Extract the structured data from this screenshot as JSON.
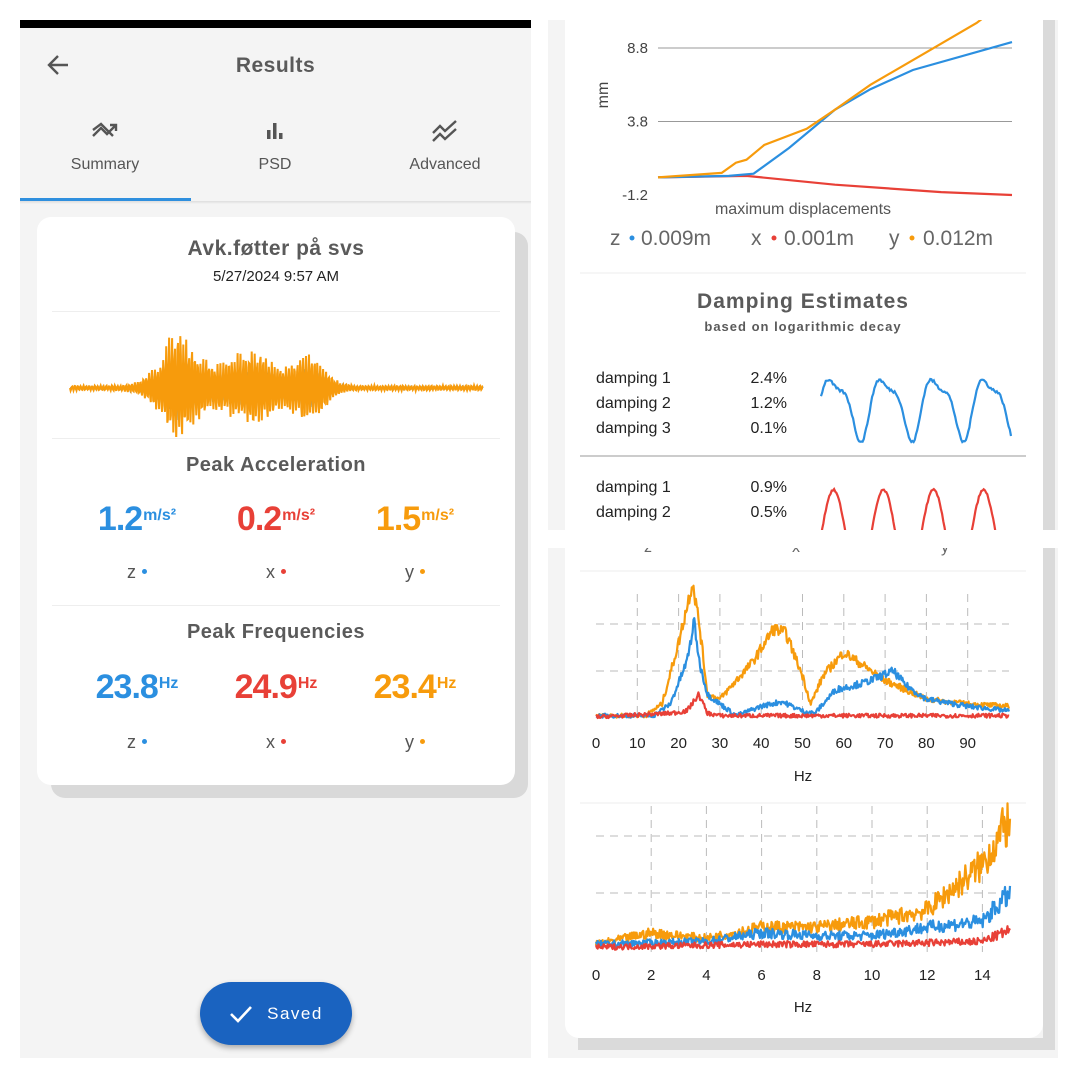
{
  "header": {
    "title": "Results",
    "back_icon": "arrow-left-icon"
  },
  "tabs": [
    {
      "label": "Summary",
      "icon": "trending-icon",
      "active": true
    },
    {
      "label": "PSD",
      "icon": "bar-chart-icon",
      "active": false
    },
    {
      "label": "Advanced",
      "icon": "multiline-chart-icon",
      "active": false
    }
  ],
  "recording": {
    "name": "Avk.føtter på svs",
    "datetime": "5/27/2024 9:57 AM"
  },
  "colors": {
    "z": "#2b8fe0",
    "x": "#e84037",
    "y": "#f79b0c",
    "accent": "#2f8fde",
    "button": "#1a63c0"
  },
  "peak_acceleration": {
    "title": "Peak Acceleration",
    "unit": "m/s²",
    "items": [
      {
        "axis": "z",
        "value": "1.2"
      },
      {
        "axis": "x",
        "value": "0.2"
      },
      {
        "axis": "y",
        "value": "1.5"
      }
    ]
  },
  "peak_frequencies": {
    "title": "Peak Frequencies",
    "unit": "Hz",
    "items": [
      {
        "axis": "z",
        "value": "23.8"
      },
      {
        "axis": "x",
        "value": "24.9"
      },
      {
        "axis": "y",
        "value": "23.4"
      }
    ]
  },
  "saved_button": {
    "label": "Saved",
    "icon": "check-icon"
  },
  "displacement": {
    "legend": [
      {
        "axis": "z",
        "value": "0.009m"
      },
      {
        "axis": "x",
        "value": "0.001m"
      },
      {
        "axis": "y",
        "value": "0.012m"
      }
    ]
  },
  "damping": {
    "title": "Damping Estimates",
    "subtitle": "based on logarithmic decay",
    "groups": [
      {
        "axis": "z",
        "rows": [
          {
            "label": "damping 1",
            "value": "2.4%"
          },
          {
            "label": "damping 2",
            "value": "1.2%"
          },
          {
            "label": "damping 3",
            "value": "0.1%"
          }
        ]
      },
      {
        "axis": "x",
        "rows": [
          {
            "label": "damping 1",
            "value": "0.9%"
          },
          {
            "label": "damping 2",
            "value": "0.5%"
          }
        ]
      }
    ]
  },
  "psd_legend": [
    "z",
    "x",
    "y"
  ],
  "chart_data": [
    {
      "type": "line",
      "xlabel": "maximum displacements",
      "ylabel": "mm",
      "yticks": [
        "8.8",
        "3.8",
        "-1.2"
      ],
      "ylim": [
        -1.2,
        8.8
      ],
      "grid": "horizontal",
      "x": "relative time 0-1",
      "series": [
        {
          "axis": "z",
          "points": [
            [
              0,
              0
            ],
            [
              0.2,
              0.1
            ],
            [
              0.27,
              0.25
            ],
            [
              0.37,
              2
            ],
            [
              0.5,
              4.6
            ],
            [
              0.6,
              6
            ],
            [
              0.72,
              7.3
            ],
            [
              1,
              9.2
            ]
          ]
        },
        {
          "axis": "x",
          "points": [
            [
              0,
              0
            ],
            [
              0.25,
              0.1
            ],
            [
              0.5,
              -0.5
            ],
            [
              0.8,
              -1.0
            ],
            [
              1,
              -1.2
            ]
          ]
        },
        {
          "axis": "y",
          "points": [
            [
              0,
              0
            ],
            [
              0.18,
              0.3
            ],
            [
              0.22,
              1
            ],
            [
              0.25,
              1.2
            ],
            [
              0.3,
              2.2
            ],
            [
              0.42,
              3.3
            ],
            [
              0.5,
              4.6
            ],
            [
              0.6,
              6.3
            ],
            [
              0.75,
              8.4
            ],
            [
              0.9,
              10.5
            ],
            [
              0.97,
              11.8
            ]
          ]
        }
      ]
    },
    {
      "type": "line",
      "xlabel": "Hz",
      "xticks": [
        "0",
        "10",
        "20",
        "30",
        "40",
        "50",
        "60",
        "70",
        "80",
        "90"
      ],
      "xlim": [
        0,
        100
      ],
      "ylim": [
        0,
        3
      ],
      "grid": "dashed",
      "series": [
        {
          "axis": "y",
          "points": [
            [
              0,
              0.05
            ],
            [
              12,
              0.05
            ],
            [
              16,
              0.3
            ],
            [
              20,
              1.6
            ],
            [
              23.4,
              2.9
            ],
            [
              25,
              2
            ],
            [
              27,
              0.5
            ],
            [
              30,
              0.4
            ],
            [
              33,
              0.7
            ],
            [
              38,
              1.2
            ],
            [
              43,
              1.9
            ],
            [
              46,
              1.8
            ],
            [
              50,
              0.9
            ],
            [
              52,
              0.3
            ],
            [
              55,
              0.9
            ],
            [
              60,
              1.4
            ],
            [
              65,
              1.1
            ],
            [
              70,
              0.8
            ],
            [
              75,
              0.6
            ],
            [
              80,
              0.4
            ],
            [
              90,
              0.3
            ],
            [
              100,
              0.25
            ]
          ]
        },
        {
          "axis": "z",
          "points": [
            [
              0,
              0.05
            ],
            [
              14,
              0.05
            ],
            [
              18,
              0.3
            ],
            [
              22,
              1.2
            ],
            [
              23.8,
              2.05
            ],
            [
              25,
              1.2
            ],
            [
              27,
              0.5
            ],
            [
              30,
              0.3
            ],
            [
              34,
              0.05
            ],
            [
              40,
              0.25
            ],
            [
              45,
              0.35
            ],
            [
              50,
              0.15
            ],
            [
              53,
              0.1
            ],
            [
              58,
              0.6
            ],
            [
              65,
              0.75
            ],
            [
              72,
              1.0
            ],
            [
              75,
              0.7
            ],
            [
              80,
              0.4
            ],
            [
              90,
              0.25
            ],
            [
              100,
              0.15
            ]
          ]
        },
        {
          "axis": "x",
          "points": [
            [
              0,
              0.02
            ],
            [
              18,
              0.1
            ],
            [
              22,
              0.15
            ],
            [
              24.9,
              0.5
            ],
            [
              27,
              0.1
            ],
            [
              30,
              0.05
            ],
            [
              100,
              0.05
            ]
          ]
        }
      ]
    },
    {
      "type": "line",
      "xlabel": "Hz",
      "xticks": [
        "0",
        "2",
        "4",
        "6",
        "8",
        "10",
        "12",
        "14"
      ],
      "xlim": [
        0,
        15
      ],
      "ylim": [
        0,
        2.3
      ],
      "grid": "dashed",
      "series": [
        {
          "axis": "y",
          "points": [
            [
              0,
              0.1
            ],
            [
              2,
              0.3
            ],
            [
              4,
              0.2
            ],
            [
              6,
              0.4
            ],
            [
              8,
              0.4
            ],
            [
              10,
              0.5
            ],
            [
              12,
              0.7
            ],
            [
              13,
              1.1
            ],
            [
              14,
              1.5
            ],
            [
              15,
              2.3
            ]
          ]
        },
        {
          "axis": "z",
          "points": [
            [
              0,
              0.1
            ],
            [
              4,
              0.15
            ],
            [
              6,
              0.3
            ],
            [
              8,
              0.25
            ],
            [
              10,
              0.25
            ],
            [
              12,
              0.4
            ],
            [
              14,
              0.5
            ],
            [
              15,
              1
            ]
          ]
        },
        {
          "axis": "x",
          "points": [
            [
              0,
              0.05
            ],
            [
              6,
              0.1
            ],
            [
              10,
              0.1
            ],
            [
              14,
              0.15
            ],
            [
              15,
              0.35
            ]
          ]
        }
      ]
    }
  ]
}
